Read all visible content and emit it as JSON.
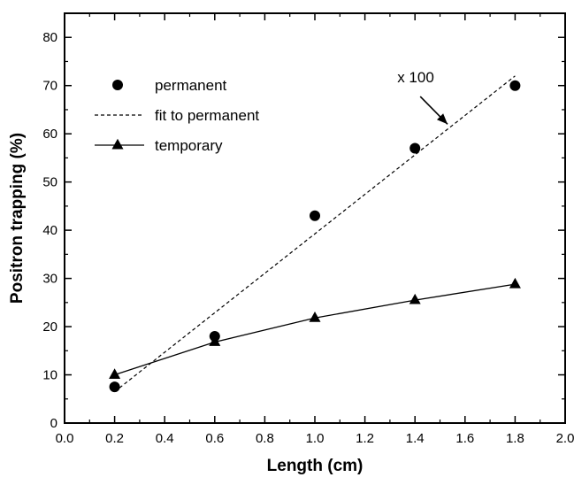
{
  "chart_data": {
    "type": "scatter",
    "title": "",
    "xlabel": "Length (cm)",
    "ylabel": "Positron trapping (%)",
    "xlim": [
      0.0,
      2.0
    ],
    "ylim": [
      0,
      85
    ],
    "x_ticks": [
      "0.0",
      "0.2",
      "0.4",
      "0.6",
      "0.8",
      "1.0",
      "1.2",
      "1.4",
      "1.6",
      "1.8",
      "2.0"
    ],
    "y_ticks": [
      "0",
      "10",
      "20",
      "30",
      "40",
      "50",
      "60",
      "70",
      "80"
    ],
    "grid": false,
    "legend_position": "top-left",
    "series": [
      {
        "name": "permanent",
        "style": "markers-circle",
        "x": [
          0.2,
          0.6,
          1.0,
          1.4,
          1.8
        ],
        "y": [
          7.5,
          18,
          43,
          57,
          70
        ]
      },
      {
        "name": "fit to permanent",
        "style": "dashed-line",
        "x": [
          0.2,
          1.8
        ],
        "y": [
          6.5,
          72
        ]
      },
      {
        "name": "temporary",
        "style": "line-with-triangles",
        "x": [
          0.2,
          0.6,
          1.0,
          1.4,
          1.8
        ],
        "y": [
          10,
          16.8,
          21.8,
          25.5,
          28.8
        ]
      }
    ],
    "annotations": [
      {
        "text": "x 100",
        "arrow_from": [
          1.4,
          67
        ],
        "arrow_to": [
          1.53,
          62
        ]
      }
    ],
    "colors": {
      "axis": "#000000",
      "markers": "#000000"
    }
  }
}
